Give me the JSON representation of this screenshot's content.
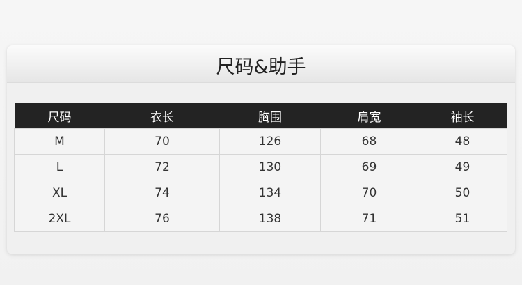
{
  "title": "尺码&助手",
  "table": {
    "headers": [
      "尺码",
      "衣长",
      "胸围",
      "肩宽",
      "袖长"
    ],
    "rows": [
      [
        "M",
        "70",
        "126",
        "68",
        "48"
      ],
      [
        "L",
        "72",
        "130",
        "69",
        "49"
      ],
      [
        "XL",
        "74",
        "134",
        "70",
        "50"
      ],
      [
        "2XL",
        "76",
        "138",
        "71",
        "51"
      ]
    ]
  }
}
